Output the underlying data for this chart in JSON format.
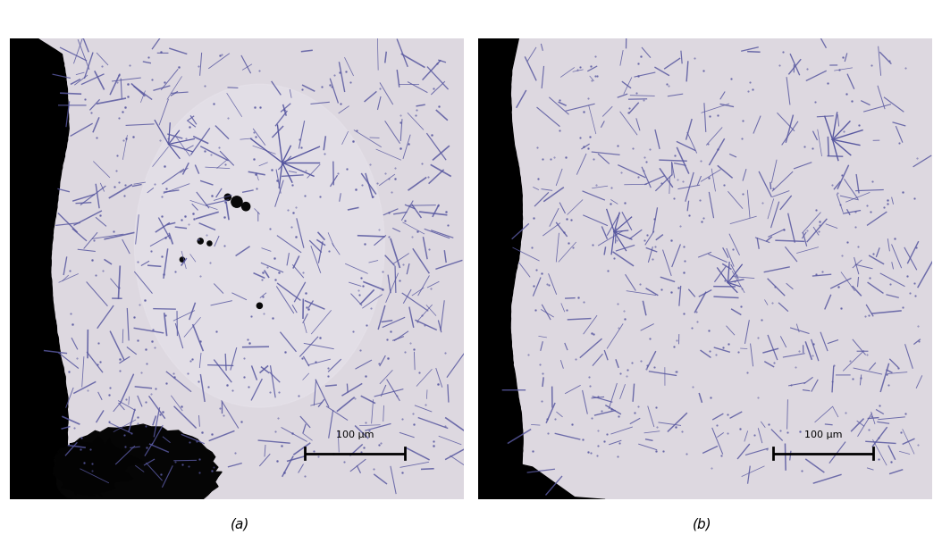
{
  "fig_width": 10.54,
  "fig_height": 6.08,
  "dpi": 100,
  "background_color": "#ffffff",
  "label_a": "(a)",
  "label_b": "(b)",
  "scalebar_text": "100 μm",
  "label_fontsize": 11,
  "scalebar_fontsize": 8,
  "panel_a": {
    "bg_color": "#ddd8e0",
    "black_region_color": "#000000",
    "crystal_color": "#5858a0",
    "dark_spot_color": "#050505"
  },
  "panel_b": {
    "bg_color": "#ddd8e0",
    "black_region_color": "#000000",
    "crystal_color": "#5858a0"
  }
}
